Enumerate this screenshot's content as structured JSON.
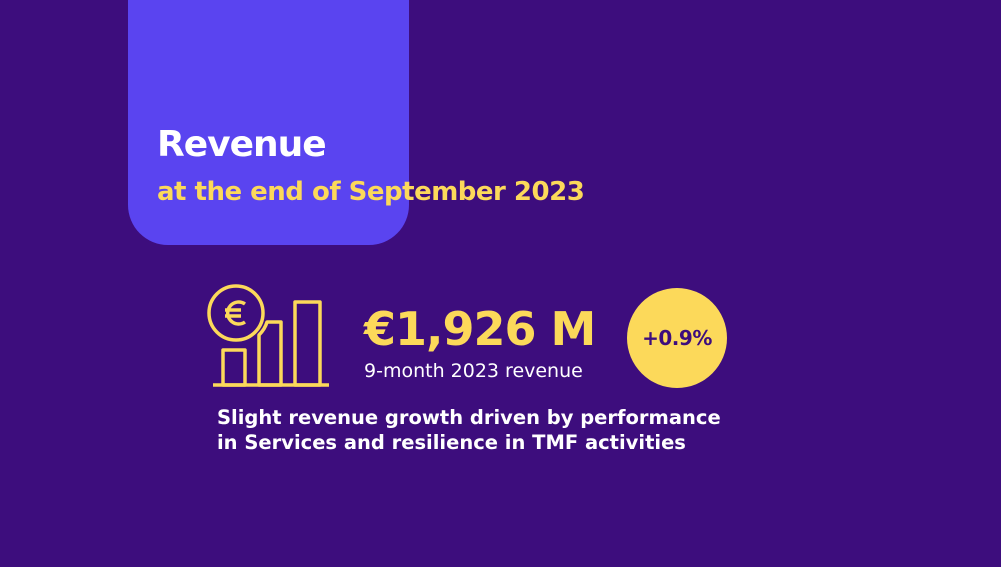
{
  "header": {
    "title": "Revenue",
    "subtitle": "at the end of September 2023"
  },
  "kpi": {
    "icon": "euro-coin-bar-chart-icon",
    "amount": "€1,926 M",
    "label": "9-month 2023 revenue",
    "change": "+0.9%"
  },
  "description": {
    "line1": "Slight revenue growth driven by performance",
    "line2": "in Services and resilience in TMF activities"
  },
  "colors": {
    "background": "#3d0d7d",
    "card": "#5a44f0",
    "accent": "#fcd95a",
    "text": "#ffffff"
  }
}
